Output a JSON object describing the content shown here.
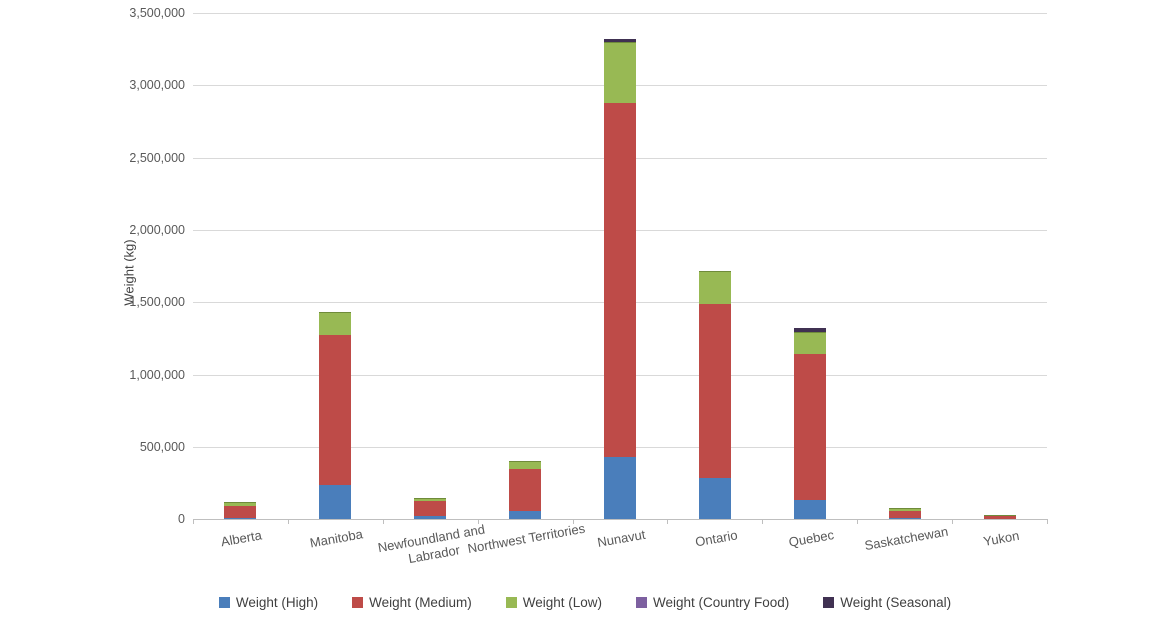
{
  "chart_data": {
    "type": "bar",
    "stacked": true,
    "title": "",
    "xlabel": "",
    "ylabel": "Weight (kg)",
    "ylim": [
      0,
      3500000
    ],
    "y_tick_step": 500000,
    "grid": true,
    "legend_position": "bottom",
    "categories": [
      "Alberta",
      "Manitoba",
      "Newfoundland and Labrador",
      "Northwest Territories",
      "Nunavut",
      "Ontario",
      "Quebec",
      "Saskatchewan",
      "Yukon"
    ],
    "series": [
      {
        "name": "Weight (High)",
        "color": "#4A7EBB",
        "values": [
          10000,
          240000,
          22000,
          55000,
          430000,
          285000,
          130000,
          10000,
          3000
        ]
      },
      {
        "name": "Weight (Medium)",
        "color": "#BE4B48",
        "values": [
          85000,
          1035000,
          105000,
          295000,
          2445000,
          1200000,
          1015000,
          50000,
          20000
        ]
      },
      {
        "name": "Weight (Low)",
        "color": "#98B954",
        "values": [
          25000,
          160000,
          18000,
          52000,
          425000,
          230000,
          150000,
          15000,
          8000
        ]
      },
      {
        "name": "Weight (Country Food)",
        "color": "#7D60A0",
        "values": [
          0,
          0,
          0,
          0,
          0,
          0,
          0,
          0,
          0
        ]
      },
      {
        "name": "Weight (Seasonal)",
        "color": "#403152",
        "values": [
          0,
          0,
          0,
          0,
          20000,
          0,
          25000,
          0,
          0
        ]
      }
    ]
  }
}
